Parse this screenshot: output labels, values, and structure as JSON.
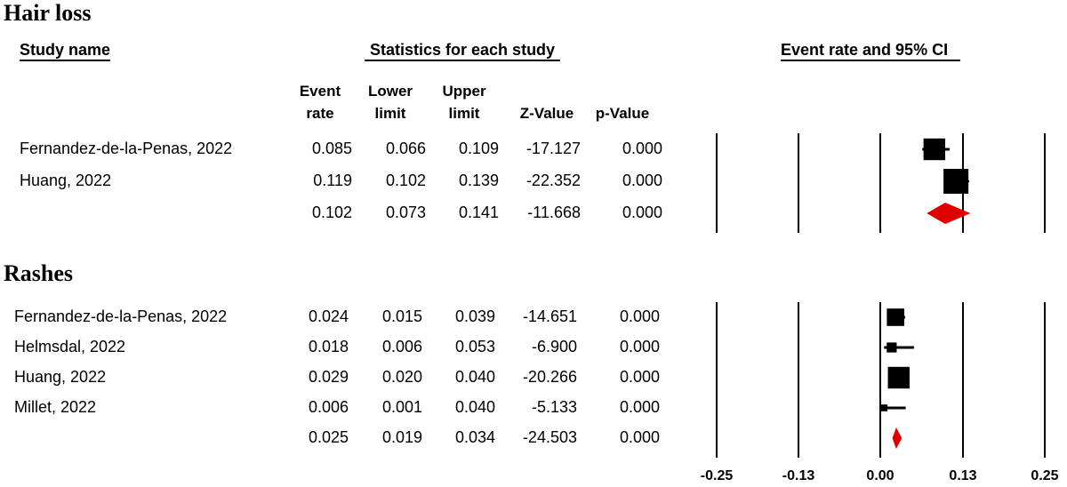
{
  "header": {
    "study_name": "Study name",
    "statistics": "Statistics for each study",
    "event_rate_ci": "Event rate and 95% CI",
    "columns": [
      [
        "Event",
        "rate"
      ],
      [
        "Lower",
        "limit"
      ],
      [
        "Upper",
        "limit"
      ],
      [
        "",
        "Z-Value"
      ],
      [
        "",
        "p-Value"
      ]
    ]
  },
  "chart_data": [
    {
      "type": "forest",
      "title": "Hair loss",
      "rows": [
        {
          "study": "Fernandez-de-la-Penas, 2022",
          "event_rate": "0.085",
          "lower": "0.066",
          "upper": "0.109",
          "z": "-17.127",
          "p": "0.000",
          "weight": 0.85
        },
        {
          "study": "Huang, 2022",
          "event_rate": "0.119",
          "lower": "0.102",
          "upper": "0.139",
          "z": "-22.352",
          "p": "0.000",
          "weight": 1.0
        }
      ],
      "summary": {
        "event_rate": "0.102",
        "lower": "0.073",
        "upper": "0.141",
        "z": "-11.668",
        "p": "0.000"
      }
    },
    {
      "type": "forest",
      "title": "Rashes",
      "rows": [
        {
          "study": "Fernandez-de-la-Penas, 2022",
          "event_rate": "0.024",
          "lower": "0.015",
          "upper": "0.039",
          "z": "-14.651",
          "p": "0.000",
          "weight": 0.65
        },
        {
          "study": "Helmsdal, 2022",
          "event_rate": "0.018",
          "lower": "0.006",
          "upper": "0.053",
          "z": "-6.900",
          "p": "0.000",
          "weight": 0.3
        },
        {
          "study": "Huang, 2022",
          "event_rate": "0.029",
          "lower": "0.020",
          "upper": "0.040",
          "z": "-20.266",
          "p": "0.000",
          "weight": 0.85
        },
        {
          "study": "Millet, 2022",
          "event_rate": "0.006",
          "lower": "0.001",
          "upper": "0.040",
          "z": "-5.133",
          "p": "0.000",
          "weight": 0.15
        }
      ],
      "summary": {
        "event_rate": "0.025",
        "lower": "0.019",
        "upper": "0.034",
        "z": "-24.503",
        "p": "0.000"
      }
    }
  ],
  "axis": {
    "ticks": [
      -0.25,
      -0.13,
      0.0,
      0.13,
      0.25
    ],
    "tick_labels": [
      "-0.25",
      "-0.13",
      "0.00",
      "0.13",
      "0.25"
    ],
    "xlim": [
      -0.25,
      0.25
    ]
  },
  "colors": {
    "marker": "#000000",
    "summary": "#e00000",
    "grid": "#000000"
  }
}
